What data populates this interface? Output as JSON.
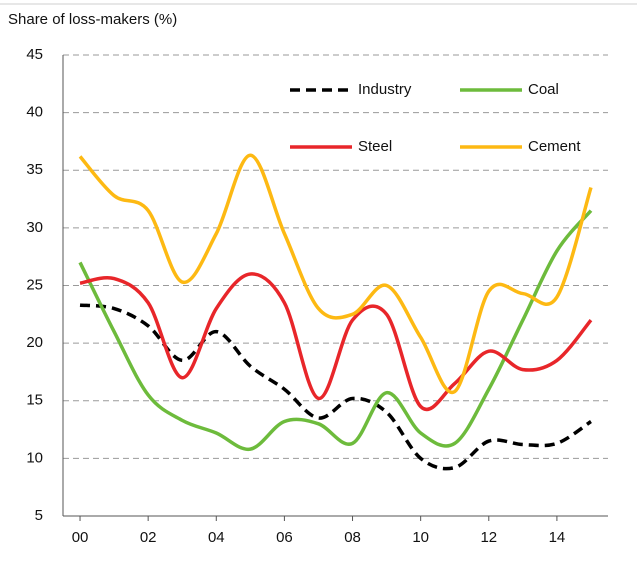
{
  "chart_data": {
    "type": "line",
    "y_label": "Share of loss-makers  (%)",
    "x": [
      2000,
      2001,
      2002,
      2003,
      2004,
      2005,
      2006,
      2007,
      2008,
      2009,
      2010,
      2011,
      2012,
      2013,
      2014,
      2015
    ],
    "xlim": [
      1999.5,
      2015.5
    ],
    "xticks": [
      {
        "value": 2000,
        "label": "00"
      },
      {
        "value": 2002,
        "label": "02"
      },
      {
        "value": 2004,
        "label": "04"
      },
      {
        "value": 2006,
        "label": "06"
      },
      {
        "value": 2008,
        "label": "08"
      },
      {
        "value": 2010,
        "label": "10"
      },
      {
        "value": 2012,
        "label": "12"
      },
      {
        "value": 2014,
        "label": "14"
      }
    ],
    "ylim": [
      5,
      45
    ],
    "yticks": [
      5,
      10,
      15,
      20,
      25,
      30,
      35,
      40,
      45
    ],
    "grid": true,
    "legend": "top-right",
    "series": [
      {
        "name": "Industry",
        "color": "#000000",
        "dashed": true,
        "values": [
          23.3,
          23,
          21.5,
          18.5,
          21,
          18,
          16,
          13.5,
          15.2,
          14,
          10,
          9.2,
          11.5,
          11.2,
          11.3,
          13.2
        ]
      },
      {
        "name": "Coal",
        "color": "#6dbb3c",
        "values": [
          27,
          21,
          15.5,
          13.3,
          12.2,
          10.8,
          13.2,
          13,
          11.3,
          15.7,
          12.2,
          11.3,
          16,
          22,
          28,
          31.5
        ]
      },
      {
        "name": "Steel",
        "color": "#e8262a",
        "values": [
          25.2,
          25.6,
          23.5,
          17,
          23,
          26,
          23.5,
          15.2,
          22,
          22.5,
          14.5,
          16.5,
          19.3,
          17.7,
          18.5,
          22
        ]
      },
      {
        "name": "Cement",
        "color": "#fdb913",
        "values": [
          36.2,
          32.8,
          31.5,
          25.3,
          29.5,
          36.3,
          29.5,
          23,
          22.5,
          25,
          20.5,
          15.8,
          24.5,
          24.3,
          24,
          33.5
        ]
      }
    ]
  }
}
